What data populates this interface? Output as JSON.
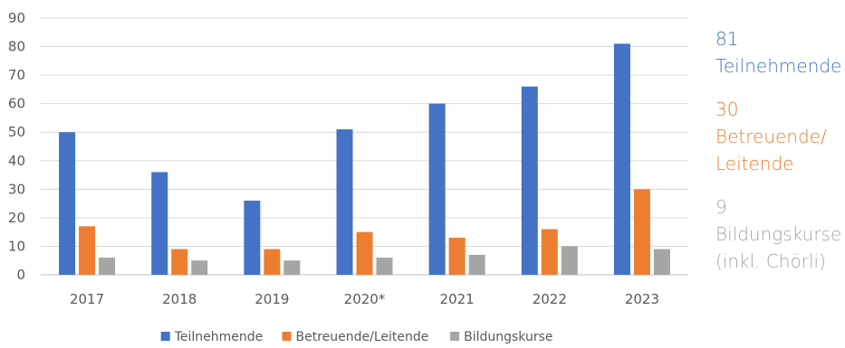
{
  "chart_data": {
    "type": "bar",
    "categories": [
      "2017",
      "2018",
      "2019",
      "2020*",
      "2021",
      "2022",
      "2023"
    ],
    "series": [
      {
        "name": "Teilnehmende",
        "values": [
          50,
          36,
          26,
          51,
          60,
          66,
          81
        ],
        "color": "#4472C4"
      },
      {
        "name": "Betreuende/Leitende",
        "values": [
          17,
          9,
          9,
          15,
          13,
          16,
          30
        ],
        "color": "#ED7D31"
      },
      {
        "name": "Bildungskurse",
        "values": [
          6,
          5,
          5,
          6,
          7,
          10,
          9
        ],
        "color": "#A5A5A5"
      }
    ],
    "y_ticks": [
      0,
      10,
      20,
      30,
      40,
      50,
      60,
      70,
      80,
      90
    ],
    "ylim": [
      0,
      90
    ],
    "grid": true,
    "legend_position": "bottom"
  },
  "summary": [
    {
      "value": "81",
      "label": "Teilnehmende",
      "color": "#4472C4"
    },
    {
      "value": "30",
      "label": "Betreuende/\nLeitende",
      "color": "#ED7D31"
    },
    {
      "value": "9",
      "label": "Bildungskurse\n(inkl. Chörli)",
      "color": "#A5A5A5"
    }
  ]
}
